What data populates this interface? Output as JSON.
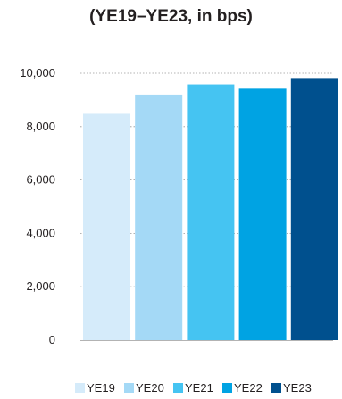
{
  "chart_data": {
    "type": "bar",
    "title": "(YE19–YE23, in bps)",
    "categories": [
      "YE19",
      "YE20",
      "YE21",
      "YE22",
      "YE23"
    ],
    "values": [
      8480,
      9200,
      9580,
      9420,
      9820
    ],
    "colors": [
      "#d5ebfa",
      "#a4d9f6",
      "#45c4f2",
      "#00a3e3",
      "#00508e"
    ],
    "y_ticks": [
      "0",
      "2,000",
      "4,000",
      "6,000",
      "8,000",
      "10,000"
    ],
    "ylim": [
      0,
      10000
    ],
    "grid": "dotted horizontal",
    "legend": "bottom",
    "xlabel": "",
    "ylabel": ""
  }
}
